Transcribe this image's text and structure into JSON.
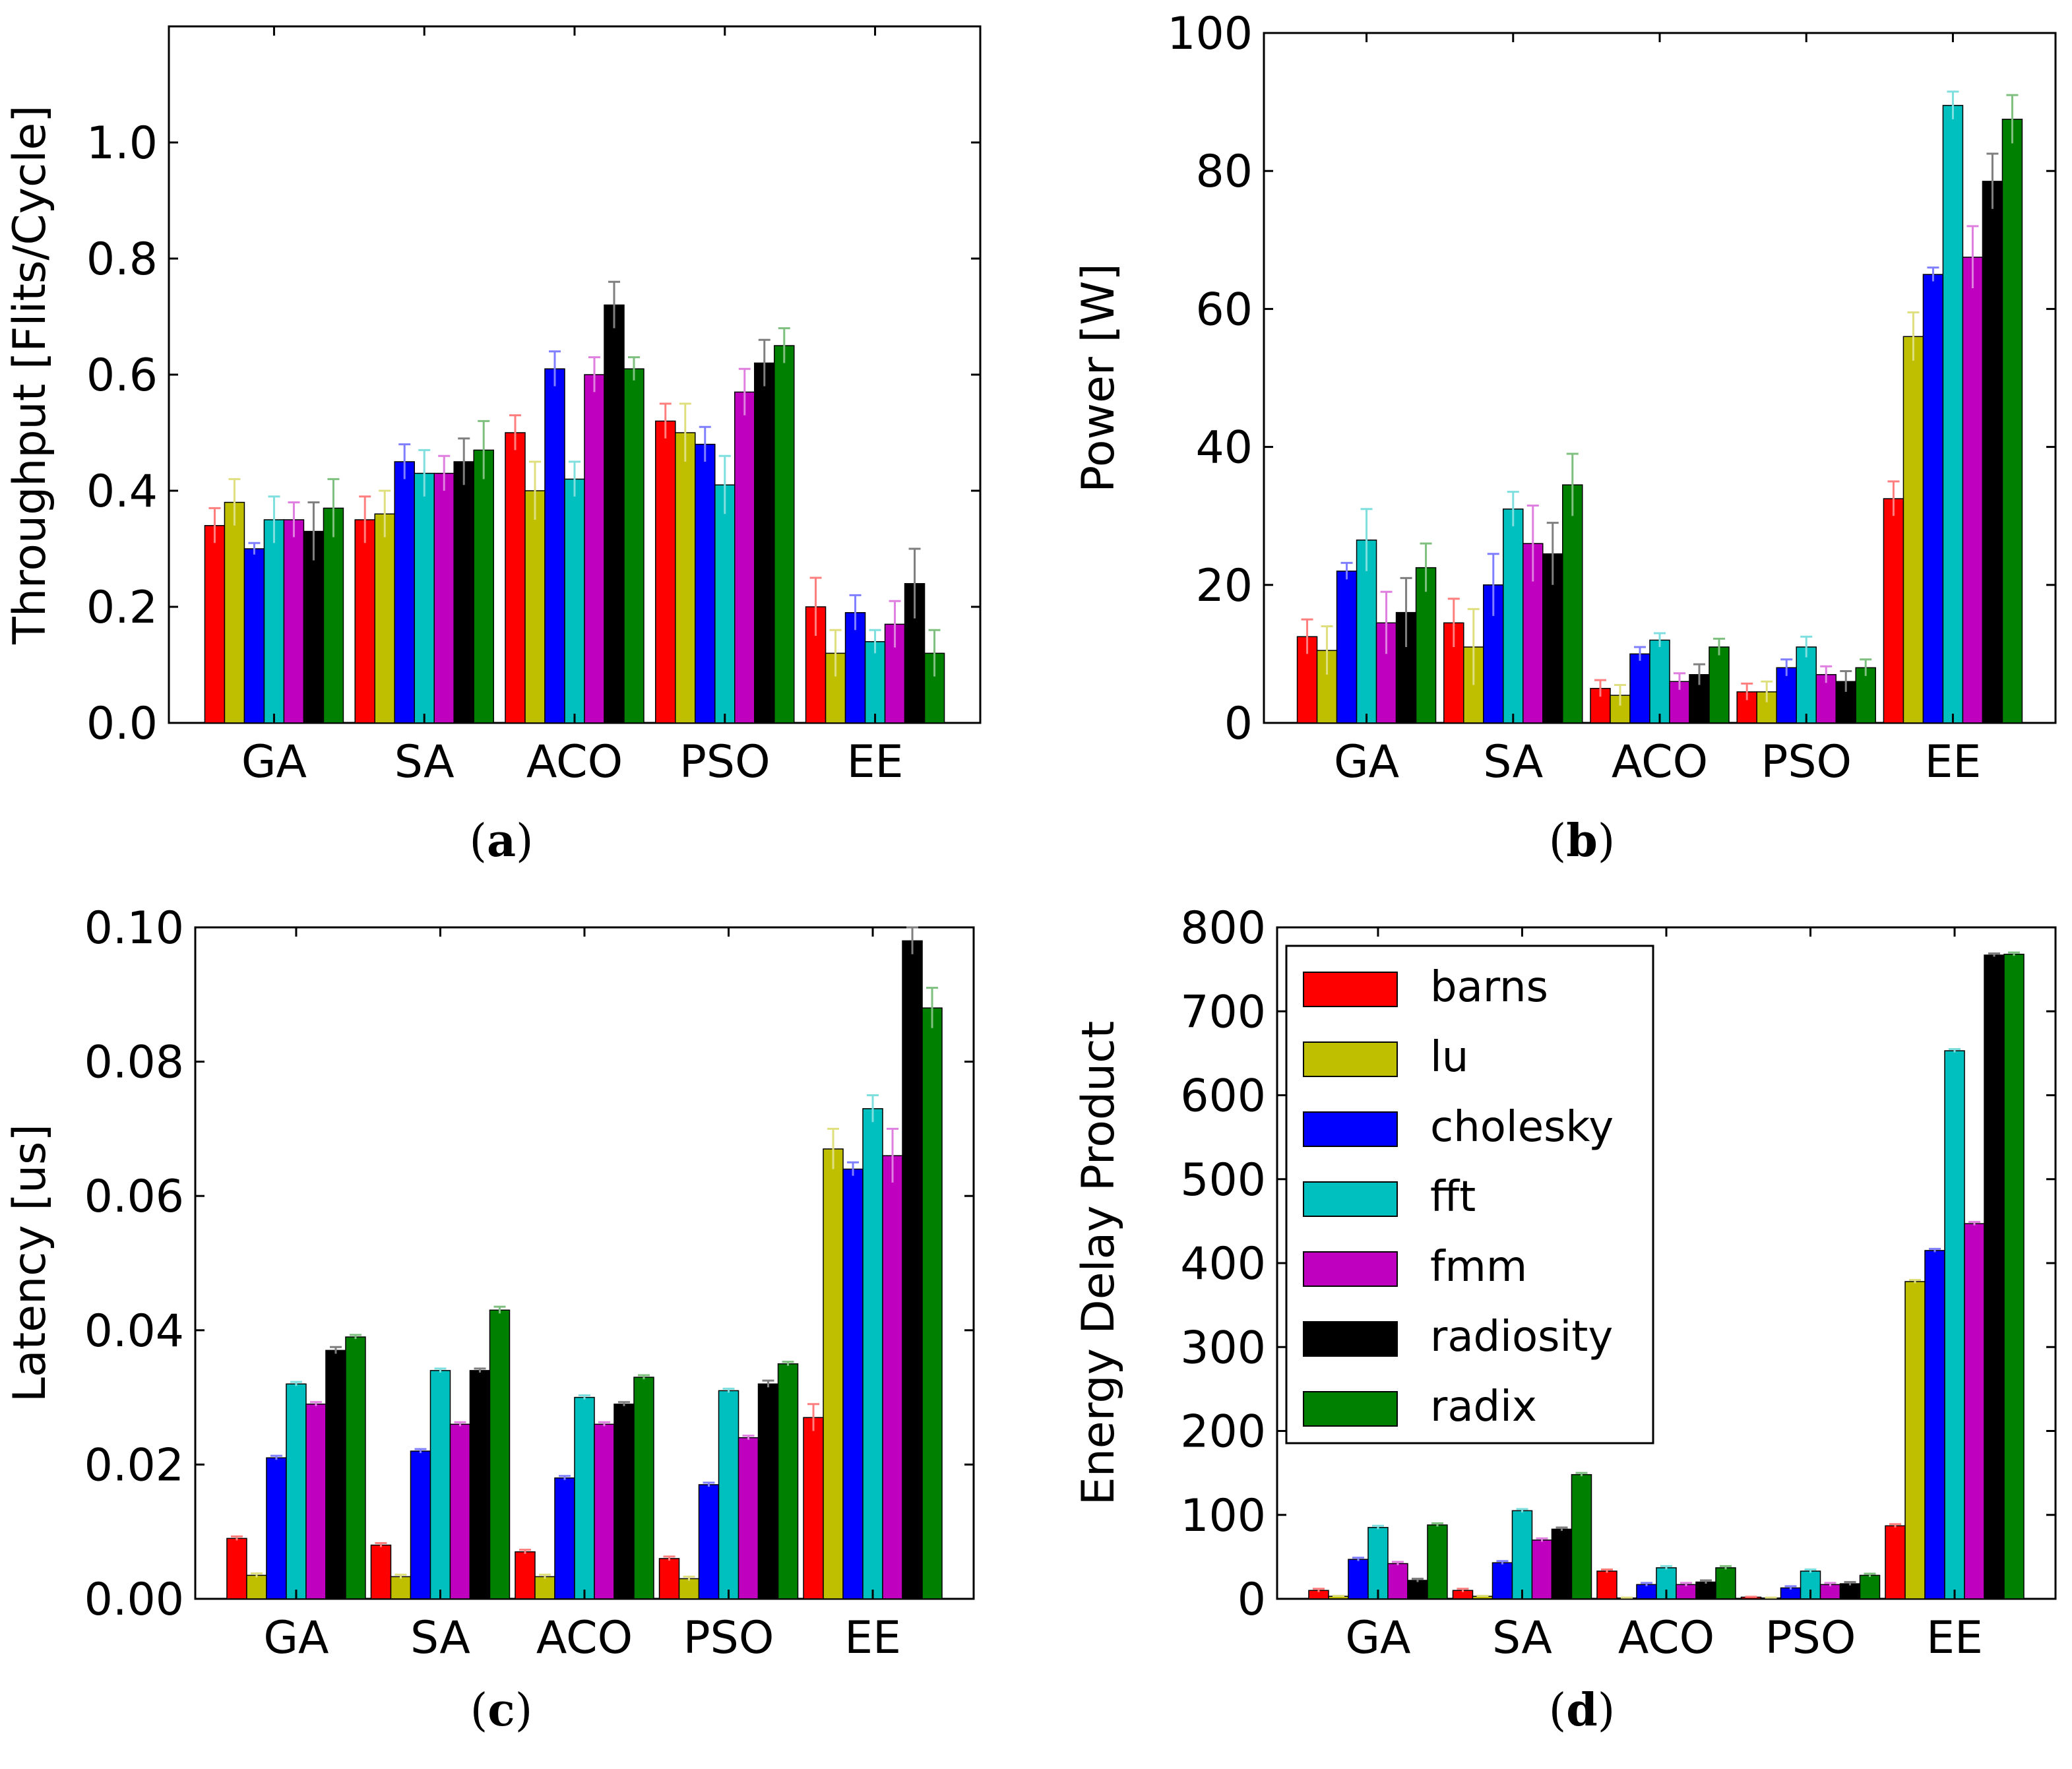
{
  "chart_data": [
    {
      "id": "a",
      "type": "bar",
      "caption_letter": "a",
      "ylabel": "Throughput [Flits/Cycle]",
      "ylim": [
        0,
        1.2
      ],
      "yticks": [
        "0.0",
        "0.2",
        "0.4",
        "0.6",
        "0.8",
        "1.0"
      ],
      "categories": [
        "GA",
        "SA",
        "ACO",
        "PSO",
        "EE"
      ],
      "series": [
        {
          "name": "barns",
          "values": [
            0.34,
            0.35,
            0.5,
            0.52,
            0.2
          ],
          "errors": [
            0.03,
            0.04,
            0.03,
            0.03,
            0.05
          ]
        },
        {
          "name": "lu",
          "values": [
            0.38,
            0.36,
            0.4,
            0.5,
            0.12
          ],
          "errors": [
            0.04,
            0.04,
            0.05,
            0.05,
            0.04
          ]
        },
        {
          "name": "cholesky",
          "values": [
            0.3,
            0.45,
            0.61,
            0.48,
            0.19
          ],
          "errors": [
            0.01,
            0.03,
            0.03,
            0.03,
            0.03
          ]
        },
        {
          "name": "fft",
          "values": [
            0.35,
            0.43,
            0.42,
            0.41,
            0.14
          ],
          "errors": [
            0.04,
            0.04,
            0.03,
            0.05,
            0.02
          ]
        },
        {
          "name": "fmm",
          "values": [
            0.35,
            0.43,
            0.6,
            0.57,
            0.17
          ],
          "errors": [
            0.03,
            0.03,
            0.03,
            0.04,
            0.04
          ]
        },
        {
          "name": "radiosity",
          "values": [
            0.33,
            0.45,
            0.72,
            0.62,
            0.24
          ],
          "errors": [
            0.05,
            0.04,
            0.04,
            0.04,
            0.06
          ]
        },
        {
          "name": "radix",
          "values": [
            0.37,
            0.47,
            0.61,
            0.65,
            0.12
          ],
          "errors": [
            0.05,
            0.05,
            0.02,
            0.03,
            0.04
          ]
        }
      ]
    },
    {
      "id": "b",
      "type": "bar",
      "caption_letter": "b",
      "ylabel": "Power [W]",
      "ylim": [
        0,
        100
      ],
      "yticks": [
        "0",
        "20",
        "40",
        "60",
        "80",
        "100"
      ],
      "categories": [
        "GA",
        "SA",
        "ACO",
        "PSO",
        "EE"
      ],
      "series": [
        {
          "name": "barns",
          "values": [
            12.5,
            14.5,
            5.0,
            4.5,
            32.5
          ],
          "errors": [
            2.5,
            3.5,
            1.2,
            1.2,
            2.5
          ]
        },
        {
          "name": "lu",
          "values": [
            10.5,
            11.0,
            4.0,
            4.5,
            56.0
          ],
          "errors": [
            3.5,
            5.5,
            1.5,
            1.5,
            3.5
          ]
        },
        {
          "name": "cholesky",
          "values": [
            22.0,
            20.0,
            10.0,
            8.0,
            65.0
          ],
          "errors": [
            1.2,
            4.5,
            1.0,
            1.2,
            1.0
          ]
        },
        {
          "name": "fft",
          "values": [
            26.5,
            31.0,
            12.0,
            11.0,
            89.5
          ],
          "errors": [
            4.5,
            2.5,
            1.0,
            1.5,
            2.0
          ]
        },
        {
          "name": "fmm",
          "values": [
            14.5,
            26.0,
            6.0,
            7.0,
            67.5
          ],
          "errors": [
            4.5,
            5.5,
            1.2,
            1.2,
            4.5
          ]
        },
        {
          "name": "radiosity",
          "values": [
            16.0,
            24.5,
            7.0,
            6.0,
            78.5
          ],
          "errors": [
            5.0,
            4.5,
            1.5,
            1.5,
            4.0
          ]
        },
        {
          "name": "radix",
          "values": [
            22.5,
            34.5,
            11.0,
            8.0,
            87.5
          ],
          "errors": [
            3.5,
            4.5,
            1.2,
            1.2,
            3.5
          ]
        }
      ]
    },
    {
      "id": "c",
      "type": "bar",
      "caption_letter": "c",
      "ylabel": "Latency [us]",
      "ylim": [
        0,
        0.1
      ],
      "yticks": [
        "0.00",
        "0.02",
        "0.04",
        "0.06",
        "0.08",
        "0.10"
      ],
      "categories": [
        "GA",
        "SA",
        "ACO",
        "PSO",
        "EE"
      ],
      "series": [
        {
          "name": "barns",
          "values": [
            0.009,
            0.008,
            0.007,
            0.006,
            0.027
          ],
          "errors": [
            0.0003,
            0.0003,
            0.0003,
            0.0003,
            0.002
          ]
        },
        {
          "name": "lu",
          "values": [
            0.0035,
            0.0033,
            0.0033,
            0.003,
            0.067
          ],
          "errors": [
            0.0003,
            0.0003,
            0.0003,
            0.0003,
            0.003
          ]
        },
        {
          "name": "cholesky",
          "values": [
            0.021,
            0.022,
            0.018,
            0.017,
            0.064
          ],
          "errors": [
            0.0003,
            0.0003,
            0.0003,
            0.0003,
            0.001
          ]
        },
        {
          "name": "fft",
          "values": [
            0.032,
            0.034,
            0.03,
            0.031,
            0.073
          ],
          "errors": [
            0.0003,
            0.0003,
            0.0003,
            0.0003,
            0.002
          ]
        },
        {
          "name": "fmm",
          "values": [
            0.029,
            0.026,
            0.026,
            0.024,
            0.066
          ],
          "errors": [
            0.0003,
            0.0003,
            0.0003,
            0.0003,
            0.004
          ]
        },
        {
          "name": "radiosity",
          "values": [
            0.037,
            0.034,
            0.029,
            0.032,
            0.098
          ],
          "errors": [
            0.0005,
            0.0003,
            0.0003,
            0.0005,
            0.002
          ]
        },
        {
          "name": "radix",
          "values": [
            0.039,
            0.043,
            0.033,
            0.035,
            0.088
          ],
          "errors": [
            0.0003,
            0.0005,
            0.0003,
            0.0003,
            0.003
          ]
        }
      ]
    },
    {
      "id": "d",
      "type": "bar",
      "caption_letter": "d",
      "ylabel": "Energy Delay Product",
      "ylim": [
        0,
        800
      ],
      "yticks": [
        "0",
        "100",
        "200",
        "300",
        "400",
        "500",
        "600",
        "700",
        "800"
      ],
      "categories": [
        "GA",
        "SA",
        "ACO",
        "PSO",
        "EE"
      ],
      "legend": {
        "placement": "top-left",
        "entries": [
          "barns",
          "lu",
          "cholesky",
          "fft",
          "fmm",
          "radiosity",
          "radix"
        ]
      },
      "series": [
        {
          "name": "barns",
          "values": [
            10,
            10,
            33,
            2,
            87
          ],
          "errors": [
            2,
            2,
            2,
            0.5,
            2
          ]
        },
        {
          "name": "lu",
          "values": [
            3,
            3,
            1,
            1,
            378
          ],
          "errors": [
            0.5,
            0.5,
            0.5,
            0.5,
            2
          ]
        },
        {
          "name": "cholesky",
          "values": [
            47,
            43,
            17,
            13,
            415
          ],
          "errors": [
            2,
            2,
            2,
            2,
            2
          ]
        },
        {
          "name": "fft",
          "values": [
            85,
            105,
            37,
            33,
            653
          ],
          "errors": [
            2,
            2,
            2,
            2,
            2
          ]
        },
        {
          "name": "fmm",
          "values": [
            42,
            70,
            17,
            17,
            447
          ],
          "errors": [
            2,
            2,
            2,
            2,
            2
          ]
        },
        {
          "name": "radiosity",
          "values": [
            22,
            83,
            20,
            18,
            767
          ],
          "errors": [
            2,
            2,
            2,
            2,
            2
          ]
        },
        {
          "name": "radix",
          "values": [
            88,
            148,
            37,
            28,
            768
          ],
          "errors": [
            2,
            2,
            2,
            2,
            2
          ]
        }
      ]
    }
  ],
  "colors": {
    "barns": "#ff0000",
    "lu": "#bfbf00",
    "cholesky": "#0000ff",
    "fft": "#00bfbf",
    "fmm": "#bf00bf",
    "radiosity": "#000000",
    "radix": "#008000"
  },
  "error_colors": {
    "barns": "#ff7f7f",
    "lu": "#dfdf7f",
    "cholesky": "#7f7fff",
    "fft": "#7fdfdf",
    "fmm": "#df7fdf",
    "radiosity": "#7f7f7f",
    "radix": "#7fbf7f"
  }
}
